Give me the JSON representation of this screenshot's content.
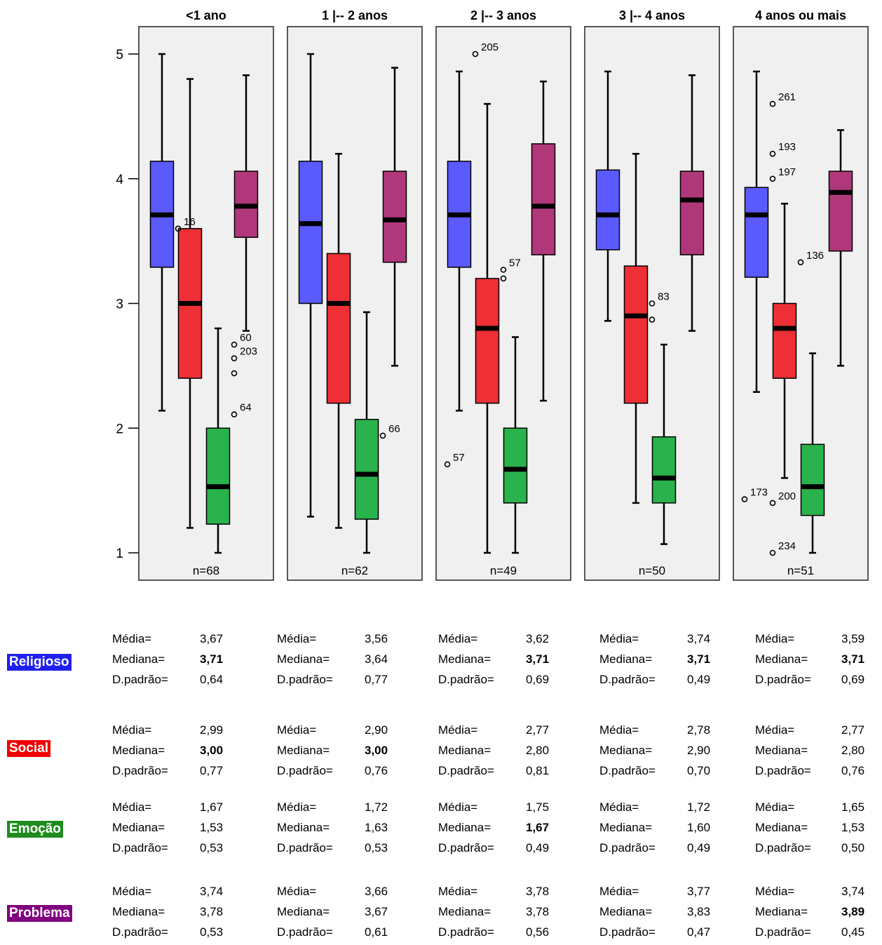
{
  "chart_data": {
    "type": "boxplot",
    "y_ticks": [
      "1",
      "2",
      "3",
      "4",
      "5"
    ],
    "ylim": [
      1,
      5
    ],
    "series": [
      {
        "name": "Religioso",
        "color": "#5a5aff"
      },
      {
        "name": "Social",
        "color": "#ee3036"
      },
      {
        "name": "Emoção",
        "color": "#2ab24c"
      },
      {
        "name": "Problema",
        "color": "#b0387a"
      }
    ],
    "panels": [
      {
        "title": "<1 ano",
        "n_label": "n=68",
        "boxes": [
          {
            "whisker_low": 2.14,
            "q1": 3.29,
            "median": 3.71,
            "q3": 4.14,
            "whisker_high": 5.0
          },
          {
            "whisker_low": 1.2,
            "q1": 2.4,
            "median": 3.0,
            "q3": 3.6,
            "whisker_high": 4.8
          },
          {
            "whisker_low": 1.0,
            "q1": 1.23,
            "median": 1.53,
            "q3": 2.0,
            "whisker_high": 2.8
          },
          {
            "whisker_low": 2.78,
            "q1": 3.53,
            "median": 3.78,
            "q3": 4.06,
            "whisker_high": 4.83
          }
        ],
        "outliers": [
          {
            "series": 1,
            "y": 3.6,
            "label": "16"
          },
          {
            "series": 3,
            "y": 2.67,
            "label": "60"
          },
          {
            "series": 3,
            "y": 2.56,
            "label": "203"
          },
          {
            "series": 3,
            "y": 2.44,
            "label": ""
          },
          {
            "series": 3,
            "y": 2.11,
            "label": "64"
          }
        ]
      },
      {
        "title": "1 |-- 2 anos",
        "n_label": "n=62",
        "boxes": [
          {
            "whisker_low": 1.29,
            "q1": 3.0,
            "median": 3.64,
            "q3": 4.14,
            "whisker_high": 5.0
          },
          {
            "whisker_low": 1.2,
            "q1": 2.2,
            "median": 3.0,
            "q3": 3.4,
            "whisker_high": 4.2
          },
          {
            "whisker_low": 1.0,
            "q1": 1.27,
            "median": 1.63,
            "q3": 2.07,
            "whisker_high": 2.93
          },
          {
            "whisker_low": 2.5,
            "q1": 3.33,
            "median": 3.67,
            "q3": 4.06,
            "whisker_high": 4.89
          }
        ],
        "outliers": [
          {
            "series": 3,
            "y": 1.94,
            "label": "66"
          }
        ]
      },
      {
        "title": "2 |-- 3 anos",
        "n_label": "n=49",
        "boxes": [
          {
            "whisker_low": 2.14,
            "q1": 3.29,
            "median": 3.71,
            "q3": 4.14,
            "whisker_high": 4.86
          },
          {
            "whisker_low": 1.0,
            "q1": 2.2,
            "median": 2.8,
            "q3": 3.2,
            "whisker_high": 4.6
          },
          {
            "whisker_low": 1.0,
            "q1": 1.4,
            "median": 1.67,
            "q3": 2.0,
            "whisker_high": 2.73
          },
          {
            "whisker_low": 2.22,
            "q1": 3.39,
            "median": 3.78,
            "q3": 4.28,
            "whisker_high": 4.78
          }
        ],
        "outliers": [
          {
            "series": 0,
            "y": 1.71,
            "label": "57"
          },
          {
            "series": 1,
            "y": 5.0,
            "label": "205"
          },
          {
            "series": 2,
            "y": 3.27,
            "label": "57"
          },
          {
            "series": 2,
            "y": 3.2,
            "label": ""
          }
        ]
      },
      {
        "title": "3 |-- 4 anos",
        "n_label": "n=50",
        "boxes": [
          {
            "whisker_low": 2.86,
            "q1": 3.43,
            "median": 3.71,
            "q3": 4.07,
            "whisker_high": 4.86
          },
          {
            "whisker_low": 1.4,
            "q1": 2.2,
            "median": 2.9,
            "q3": 3.3,
            "whisker_high": 4.2
          },
          {
            "whisker_low": 1.07,
            "q1": 1.4,
            "median": 1.6,
            "q3": 1.93,
            "whisker_high": 2.67
          },
          {
            "whisker_low": 2.78,
            "q1": 3.39,
            "median": 3.83,
            "q3": 4.06,
            "whisker_high": 4.83
          }
        ],
        "outliers": [
          {
            "series": 2,
            "y": 3.0,
            "label": "83"
          },
          {
            "series": 2,
            "y": 2.87,
            "label": ""
          }
        ]
      },
      {
        "title": "4 anos ou mais",
        "n_label": "n=51",
        "boxes": [
          {
            "whisker_low": 2.29,
            "q1": 3.21,
            "median": 3.71,
            "q3": 3.93,
            "whisker_high": 4.86
          },
          {
            "whisker_low": 1.6,
            "q1": 2.4,
            "median": 2.8,
            "q3": 3.0,
            "whisker_high": 3.8
          },
          {
            "whisker_low": 1.0,
            "q1": 1.3,
            "median": 1.53,
            "q3": 1.87,
            "whisker_high": 2.6
          },
          {
            "whisker_low": 2.5,
            "q1": 3.42,
            "median": 3.89,
            "q3": 4.06,
            "whisker_high": 4.39
          }
        ],
        "outliers": [
          {
            "series": 0,
            "y": 1.43,
            "label": "173"
          },
          {
            "series": 1,
            "y": 4.6,
            "label": "261"
          },
          {
            "series": 1,
            "y": 4.2,
            "label": "193"
          },
          {
            "series": 1,
            "y": 4.0,
            "label": "197"
          },
          {
            "series": 1,
            "y": 1.4,
            "label": "200"
          },
          {
            "series": 1,
            "y": 1.0,
            "label": "234"
          },
          {
            "series": 2,
            "y": 3.33,
            "label": "136"
          }
        ]
      }
    ]
  },
  "stats": {
    "labels": {
      "mean": "Média=",
      "median": "Mediana=",
      "sd": "D.padrão="
    },
    "categories": [
      {
        "name": "Religioso",
        "color": "#2020ee",
        "groups": [
          {
            "mean": "3,67",
            "median": "3,71",
            "sd": "0,64",
            "bold_median": true
          },
          {
            "mean": "3,56",
            "median": "3,64",
            "sd": "0,77",
            "bold_median": false
          },
          {
            "mean": "3,62",
            "median": "3,71",
            "sd": "0,69",
            "bold_median": true
          },
          {
            "mean": "3,74",
            "median": "3,71",
            "sd": "0,49",
            "bold_median": true
          },
          {
            "mean": "3,59",
            "median": "3,71",
            "sd": "0,69",
            "bold_median": true
          }
        ]
      },
      {
        "name": "Social",
        "color": "#f00000",
        "groups": [
          {
            "mean": "2,99",
            "median": "3,00",
            "sd": "0,77",
            "bold_median": true
          },
          {
            "mean": "2,90",
            "median": "3,00",
            "sd": "0,76",
            "bold_median": true
          },
          {
            "mean": "2,77",
            "median": "2,80",
            "sd": "0,81",
            "bold_median": false
          },
          {
            "mean": "2,78",
            "median": "2,90",
            "sd": "0,70",
            "bold_median": false
          },
          {
            "mean": "2,77",
            "median": "2,80",
            "sd": "0,76",
            "bold_median": false
          }
        ]
      },
      {
        "name": "Emoção",
        "color": "#1e8c1e",
        "groups": [
          {
            "mean": "1,67",
            "median": "1,53",
            "sd": "0,53",
            "bold_median": false
          },
          {
            "mean": "1,72",
            "median": "1,63",
            "sd": "0,53",
            "bold_median": false
          },
          {
            "mean": "1,75",
            "median": "1,67",
            "sd": "0,49",
            "bold_median": true
          },
          {
            "mean": "1,72",
            "median": "1,60",
            "sd": "0,49",
            "bold_median": false
          },
          {
            "mean": "1,65",
            "median": "1,53",
            "sd": "0,50",
            "bold_median": false
          }
        ]
      },
      {
        "name": "Problema",
        "color": "#800080",
        "groups": [
          {
            "mean": "3,74",
            "median": "3,78",
            "sd": "0,53",
            "bold_median": false
          },
          {
            "mean": "3,66",
            "median": "3,67",
            "sd": "0,61",
            "bold_median": false
          },
          {
            "mean": "3,78",
            "median": "3,78",
            "sd": "0,56",
            "bold_median": false
          },
          {
            "mean": "3,77",
            "median": "3,83",
            "sd": "0,47",
            "bold_median": false
          },
          {
            "mean": "3,74",
            "median": "3,89",
            "sd": "0,45",
            "bold_median": true
          }
        ]
      }
    ]
  }
}
